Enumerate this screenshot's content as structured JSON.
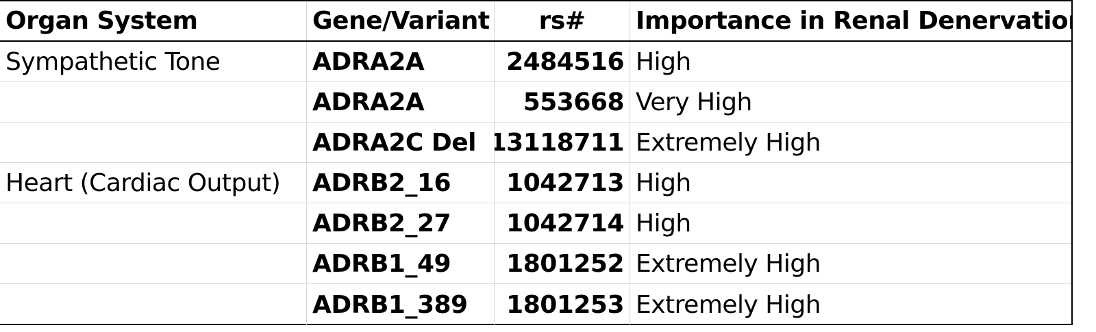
{
  "table": {
    "headers": [
      "Organ System",
      "Gene/Variant",
      "rs#",
      "Importance in Renal Denervation"
    ],
    "rows": [
      [
        "Sympathetic Tone",
        "ADRA2A",
        "2484516",
        "High"
      ],
      [
        "",
        "ADRA2A",
        "553668",
        "Very High"
      ],
      [
        "",
        "ADRA2C Del",
        "13118711",
        "Extremely High"
      ],
      [
        "Heart (Cardiac Output)",
        "ADRB2_16",
        "1042713",
        "High"
      ],
      [
        "",
        "ADRB2_27",
        "1042714",
        "High"
      ],
      [
        "",
        "ADRB1_49",
        "1801252",
        "Extremely High"
      ],
      [
        "",
        "ADRB1_389",
        "1801253",
        "Extremely High"
      ]
    ]
  }
}
